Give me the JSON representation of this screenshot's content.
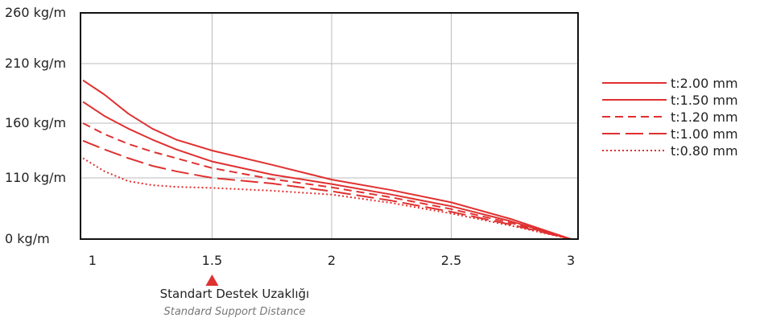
{
  "chart_data": {
    "type": "line",
    "x_ticks": [
      1,
      1.5,
      2,
      2.5,
      3
    ],
    "x_tick_labels": [
      "1",
      "1.5",
      "2",
      "2.5",
      "3"
    ],
    "y_ticks": [
      0,
      110,
      160,
      210,
      260
    ],
    "y_tick_labels": [
      "0 kg/m",
      "110 kg/m",
      "160 kg/m",
      "210 kg/m",
      "260 kg/m"
    ],
    "xlim": [
      0.95,
      3.03
    ],
    "grid": true,
    "legend_position": "right",
    "line_color": "#e03030",
    "series": [
      {
        "name": "t:2.00 mm",
        "dash": "solid",
        "x": [
          0.96,
          1.05,
          1.15,
          1.25,
          1.35,
          1.5,
          1.75,
          2.0,
          2.25,
          2.5,
          2.75,
          3.0
        ],
        "y": [
          196,
          184,
          168,
          155,
          145,
          135,
          122,
          107,
          88,
          66,
          36,
          0
        ]
      },
      {
        "name": "t:1.50 mm",
        "dash": "solid",
        "x": [
          0.96,
          1.05,
          1.15,
          1.25,
          1.35,
          1.5,
          1.75,
          2.0,
          2.25,
          2.5,
          2.75,
          3.0
        ],
        "y": [
          178,
          166,
          155,
          145,
          136,
          125,
          113,
          99,
          80,
          59,
          32,
          0
        ]
      },
      {
        "name": "t:1.20 mm",
        "dash": "short-dash",
        "x": [
          0.96,
          1.05,
          1.15,
          1.25,
          1.35,
          1.5,
          1.75,
          2.0,
          2.25,
          2.5,
          2.75,
          3.0
        ],
        "y": [
          160,
          150,
          141,
          134,
          128,
          119,
          108,
          93,
          75,
          54,
          29,
          0
        ]
      },
      {
        "name": "t:1.00 mm",
        "dash": "long-dash",
        "x": [
          0.96,
          1.05,
          1.15,
          1.25,
          1.35,
          1.5,
          1.75,
          2.0,
          2.25,
          2.5,
          2.75,
          3.0
        ],
        "y": [
          144,
          136,
          128,
          121,
          116,
          110,
          100,
          86,
          69,
          49,
          26,
          0
        ]
      },
      {
        "name": "t:0.80 mm",
        "dash": "dotted",
        "x": [
          0.96,
          1.05,
          1.15,
          1.25,
          1.35,
          1.5,
          1.75,
          2.0,
          2.25,
          2.5,
          2.75,
          3.0
        ],
        "y": [
          128,
          116,
          104,
          97,
          94,
          92,
          87,
          80,
          65,
          46,
          24,
          0
        ]
      }
    ],
    "annotation": {
      "x": 1.5,
      "text": "Standart Destek Uzaklığı",
      "subtext": "Standard Support Distance",
      "marker_color": "#e03030"
    }
  }
}
